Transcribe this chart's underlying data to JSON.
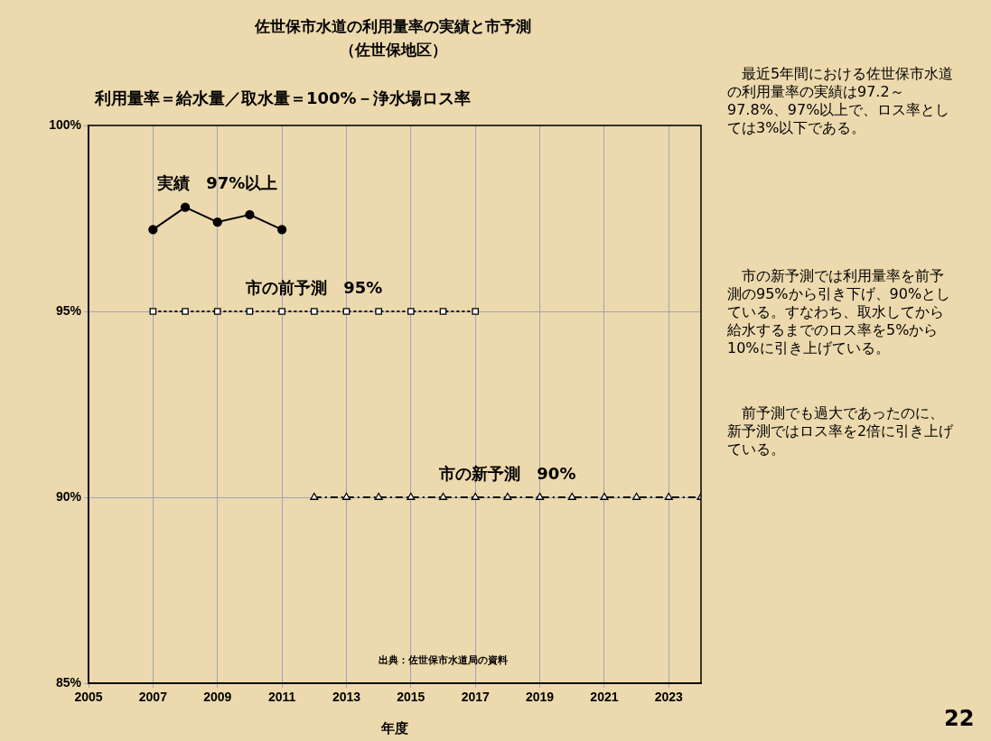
{
  "chart_data": {
    "type": "line",
    "title": "佐世保市水道の利用量率の実績と市予測",
    "subtitle": "（佐世保地区）",
    "xlabel": "年度",
    "xlim": [
      2005,
      2024
    ],
    "xticks": [
      2005,
      2007,
      2009,
      2011,
      2013,
      2015,
      2017,
      2019,
      2021,
      2023
    ],
    "ylim": [
      85,
      100
    ],
    "yticks": [
      {
        "value": 85,
        "label": "85%"
      },
      {
        "value": 90,
        "label": "90%"
      },
      {
        "value": 95,
        "label": "95%"
      },
      {
        "value": 100,
        "label": "100%"
      }
    ],
    "grid": true,
    "legend": false,
    "series": [
      {
        "name": "実績　97%以上",
        "color": "#000000",
        "marker": "circle",
        "line_style": "solid",
        "x": [
          2007,
          2008,
          2009,
          2010,
          2011
        ],
        "values": [
          97.2,
          97.8,
          97.4,
          97.6,
          97.2
        ]
      },
      {
        "name": "市の前予測　95%",
        "color": "#000000",
        "marker": "square",
        "line_style": "dotted",
        "x": [
          2007,
          2008,
          2009,
          2010,
          2011,
          2012,
          2013,
          2014,
          2015,
          2016,
          2017
        ],
        "values": [
          95,
          95,
          95,
          95,
          95,
          95,
          95,
          95,
          95,
          95,
          95
        ]
      },
      {
        "name": "市の新予測　90%",
        "color": "#000000",
        "marker": "triangle",
        "line_style": "dashed",
        "x": [
          2012,
          2013,
          2014,
          2015,
          2016,
          2017,
          2018,
          2019,
          2020,
          2021,
          2022,
          2023,
          2024
        ],
        "values": [
          90,
          90,
          90,
          90,
          90,
          90,
          90,
          90,
          90,
          90,
          90,
          90,
          90
        ]
      }
    ],
    "annotations": [
      "利用量率＝給水量／取水量＝100%－浄水場ロス率",
      "出典：佐世保市水道局の資料",
      "最近5年間における佐世保市水道の利用量率の実績は97.2～97.8%、97%以上で、ロス率としては3%以下である。",
      "市の新予測では利用量率を前予測の95%から引き下げ、90%としている。すなわち、取水してから給水するまでのロス率を5%から10%に引き上げている。",
      "前予測でも過大であったのに、新予測ではロス率を2倍に引き上げている。",
      "22"
    ]
  }
}
